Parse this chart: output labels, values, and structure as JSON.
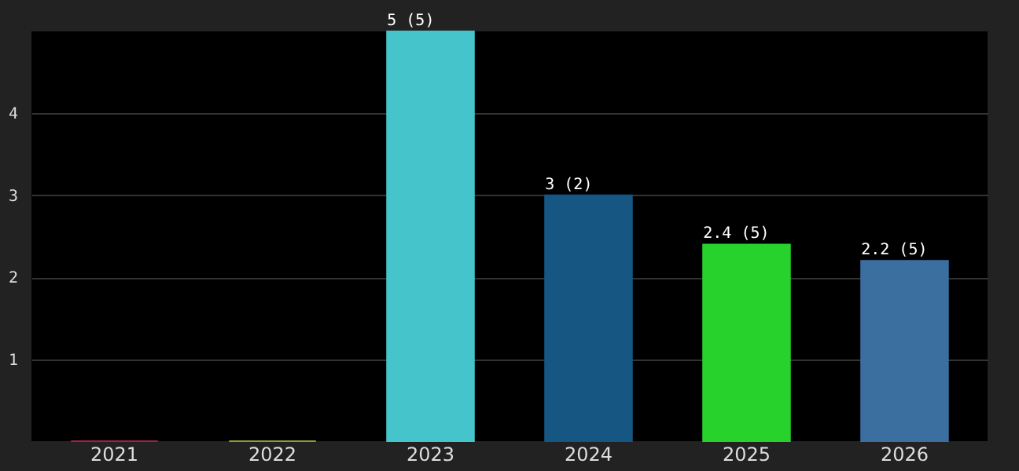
{
  "chart_data": {
    "type": "bar",
    "categories": [
      "2021",
      "2022",
      "2023",
      "2024",
      "2025",
      "2026"
    ],
    "values": [
      0,
      0,
      5,
      3,
      2.4,
      2.2
    ],
    "colors": [
      "#a0204a",
      "#8aa030",
      "#46c4cb",
      "#155683",
      "#26d22b",
      "#3b6fa0"
    ],
    "value_labels": [
      null,
      null,
      "5 (5)",
      "3 (2)",
      "2.4 (5)",
      "2.2 (5)"
    ],
    "ylim": [
      0,
      5
    ],
    "yticks": [
      1,
      2,
      3,
      4
    ],
    "grid": "y"
  }
}
